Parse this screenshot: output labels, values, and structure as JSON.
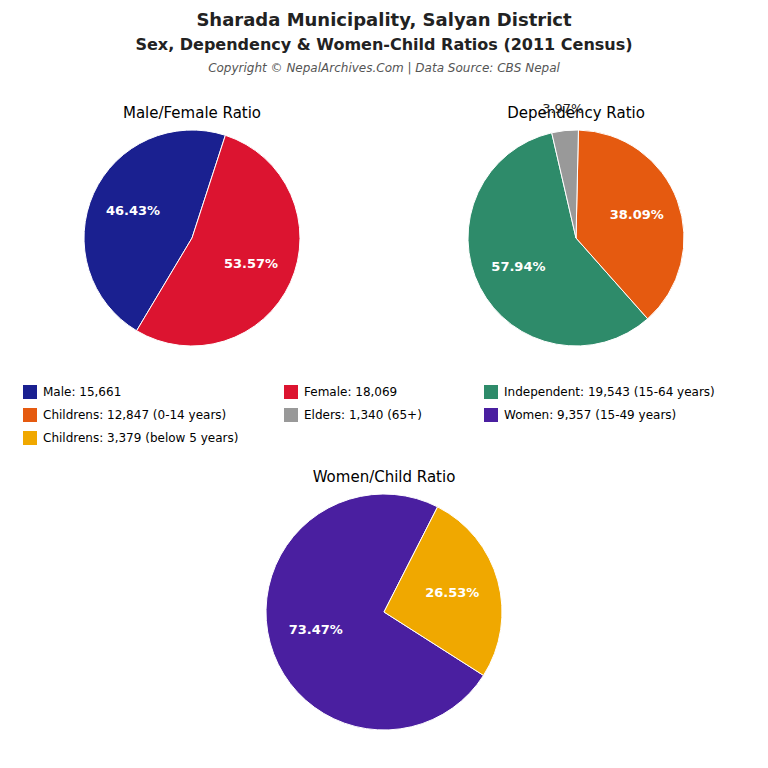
{
  "title": "Sharada Municipality, Salyan District",
  "subtitle": "Sex, Dependency & Women-Child Ratios (2011 Census)",
  "annotations": [
    "Copyright © NepalArchives.Com | Data Source: CBS Nepal"
  ],
  "chart_data": [
    {
      "type": "pie",
      "title": "Male/Female Ratio",
      "categories": [
        "Male: 15,661",
        "Female: 18,069"
      ],
      "values": [
        46.43,
        53.57
      ],
      "value_labels": [
        "46.43%",
        "53.57%"
      ],
      "colors": [
        "#1a2090",
        "#dc1430"
      ],
      "data_labels": true,
      "legend": "bottom"
    },
    {
      "type": "pie",
      "title": "Dependency Ratio",
      "categories": [
        "Independent: 19,543 (15-64 years)",
        "Childrens: 12,847 (0-14 years)",
        "Elders: 1,340 (65+)"
      ],
      "values": [
        57.94,
        38.09,
        3.97
      ],
      "value_labels": [
        "57.94%",
        "38.09%",
        "3.97%"
      ],
      "colors": [
        "#2e8b6a",
        "#e55a10",
        "#999999"
      ],
      "data_labels": true,
      "legend": "bottom"
    },
    {
      "type": "pie",
      "title": "Women/Child Ratio",
      "categories": [
        "Women: 9,357 (15-49 years)",
        "Childrens: 3,379 (below 5 years)"
      ],
      "values": [
        73.47,
        26.53
      ],
      "value_labels": [
        "73.47%",
        "26.53%"
      ],
      "colors": [
        "#4a1fa0",
        "#f0a800"
      ],
      "data_labels": true,
      "legend": "top"
    }
  ]
}
